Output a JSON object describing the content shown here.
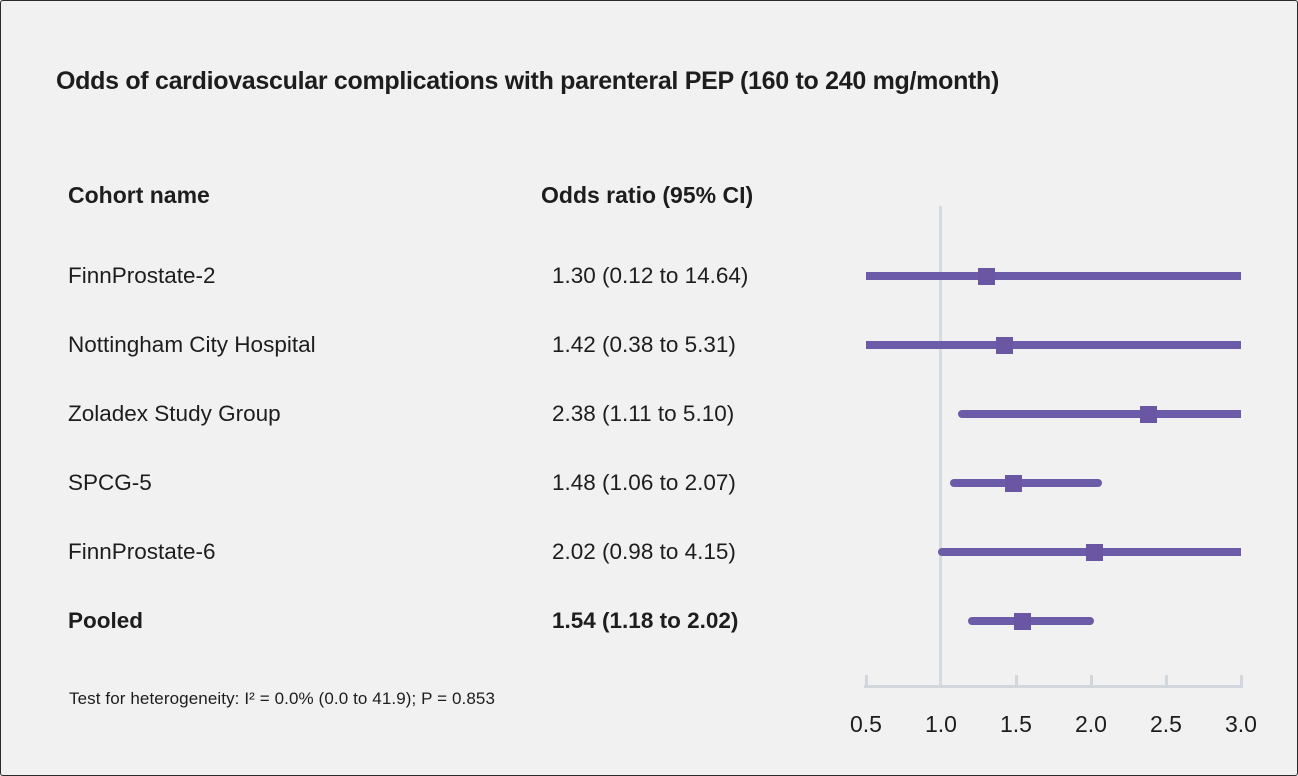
{
  "title": "Odds of cardiovascular complications with parenteral PEP (160 to 240 mg/month)",
  "table": {
    "cohort_header": "Cohort name",
    "or_header": "Odds ratio (95% CI)"
  },
  "footnote": "Test for heterogeneity: I² = 0.0% (0.0 to 41.9); P = 0.853",
  "colors": {
    "background": "#f2f1f2",
    "ci_line": "#6b5ba8",
    "point_square": "#6a56a3",
    "reference_line": "#d6dae1",
    "axis": "#d2d7de",
    "text": "#1d1d1d"
  },
  "chart_data": {
    "type": "forest",
    "title": "Odds of cardiovascular complications with parenteral PEP (160 to 240 mg/month)",
    "x_axis": {
      "ticks": [
        0.5,
        1.0,
        1.5,
        2.0,
        2.5,
        3.0
      ],
      "range": [
        0.5,
        3.0
      ],
      "reference_line": 1.0,
      "grid": false
    },
    "marker": "square",
    "series": [
      {
        "name": "FinnProstate-2",
        "or": 1.3,
        "ci_low": 0.12,
        "ci_high": 14.64,
        "or_label": "1.30 (0.12 to 14.64)",
        "pooled": false
      },
      {
        "name": "Nottingham City Hospital",
        "or": 1.42,
        "ci_low": 0.38,
        "ci_high": 5.31,
        "or_label": "1.42 (0.38 to 5.31)",
        "pooled": false
      },
      {
        "name": "Zoladex Study Group",
        "or": 2.38,
        "ci_low": 1.11,
        "ci_high": 5.1,
        "or_label": "2.38 (1.11 to 5.10)",
        "pooled": false
      },
      {
        "name": "SPCG-5",
        "or": 1.48,
        "ci_low": 1.06,
        "ci_high": 2.07,
        "or_label": "1.48 (1.06 to 2.07)",
        "pooled": false
      },
      {
        "name": "FinnProstate-6",
        "or": 2.02,
        "ci_low": 0.98,
        "ci_high": 4.15,
        "or_label": "2.02 (0.98 to 4.15)",
        "pooled": false
      },
      {
        "name": "Pooled",
        "or": 1.54,
        "ci_low": 1.18,
        "ci_high": 2.02,
        "or_label": "1.54 (1.18 to 2.02)",
        "pooled": true
      }
    ],
    "heterogeneity_note": "Test for heterogeneity: I² = 0.0% (0.0 to 41.9); P = 0.853"
  }
}
